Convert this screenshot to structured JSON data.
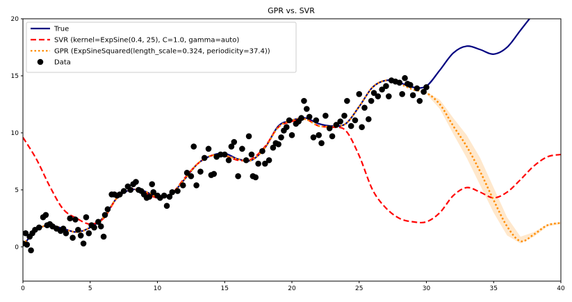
{
  "chart_data": {
    "type": "line",
    "title": "GPR vs. SVR",
    "xlabel": "",
    "ylabel": "",
    "xlim": [
      0,
      40
    ],
    "ylim": [
      -3,
      20
    ],
    "x_ticks": [
      0,
      5,
      10,
      15,
      20,
      25,
      30,
      35,
      40
    ],
    "y_ticks": [
      0,
      5,
      10,
      15,
      20
    ],
    "grid": false,
    "legend_position": "top-left",
    "series": [
      {
        "name": "True",
        "style": "solid",
        "color": "#000080",
        "x": [
          0,
          1,
          2,
          3,
          4,
          5,
          6,
          7,
          8,
          9,
          10,
          11,
          12,
          13,
          14,
          15,
          16,
          17,
          18,
          19,
          20,
          21,
          22,
          23,
          24,
          25,
          26,
          27,
          28,
          29,
          30,
          31,
          32,
          33,
          34,
          35,
          36,
          37,
          38,
          39,
          40
        ],
        "y": [
          0.1,
          1.5,
          1.9,
          1.6,
          1.3,
          1.7,
          2.6,
          4.3,
          5.0,
          4.9,
          4.4,
          4.6,
          5.9,
          7.3,
          8.0,
          8.2,
          7.7,
          7.6,
          8.7,
          10.6,
          11.1,
          11.3,
          10.8,
          10.6,
          10.8,
          12.3,
          14.0,
          14.6,
          14.4,
          14.0,
          14.1,
          15.5,
          17.0,
          17.6,
          17.3,
          16.9,
          17.5,
          19.0,
          20.5,
          22.0,
          23.5
        ]
      },
      {
        "name": "SVR (kernel=ExpSine(0.4, 25), C=1.0, gamma=auto)",
        "style": "dashed",
        "color": "#ff0000",
        "x": [
          0,
          1,
          2,
          3,
          4,
          5,
          6,
          7,
          8,
          9,
          10,
          11,
          12,
          13,
          14,
          15,
          16,
          17,
          18,
          19,
          20,
          21,
          22,
          23,
          24,
          25,
          26,
          27,
          28,
          29,
          30,
          31,
          32,
          33,
          34,
          35,
          36,
          37,
          38,
          39,
          40
        ],
        "y": [
          9.6,
          7.7,
          5.3,
          3.3,
          2.5,
          2.0,
          2.5,
          4.3,
          5.1,
          4.8,
          4.3,
          4.6,
          6.0,
          7.3,
          8.0,
          8.0,
          7.6,
          7.7,
          8.8,
          10.5,
          11.0,
          11.2,
          10.6,
          10.5,
          10.2,
          8.0,
          5.0,
          3.4,
          2.5,
          2.2,
          2.2,
          3.0,
          4.5,
          5.2,
          4.8,
          4.3,
          4.8,
          5.9,
          7.1,
          7.9,
          8.1
        ]
      },
      {
        "name": "GPR (ExpSineSquared(length_scale=0.324, periodicity=37.4))",
        "style": "dotted",
        "color": "#ff8c00",
        "x": [
          0,
          1,
          2,
          3,
          4,
          5,
          6,
          7,
          8,
          9,
          10,
          11,
          12,
          13,
          14,
          15,
          16,
          17,
          18,
          19,
          20,
          21,
          22,
          23,
          24,
          25,
          26,
          27,
          28,
          29,
          30,
          31,
          32,
          33,
          34,
          35,
          36,
          37,
          38,
          39,
          40
        ],
        "y": [
          0.2,
          1.5,
          1.9,
          1.6,
          1.3,
          1.7,
          2.6,
          4.3,
          5.0,
          4.9,
          4.4,
          4.6,
          5.9,
          7.3,
          8.0,
          8.0,
          7.7,
          7.6,
          8.7,
          10.5,
          11.1,
          11.2,
          10.6,
          10.6,
          10.8,
          12.3,
          14.0,
          14.6,
          14.3,
          13.8,
          13.5,
          12.5,
          10.6,
          8.8,
          6.6,
          4.1,
          1.8,
          0.5,
          1.1,
          1.9,
          2.1
        ],
        "band_upper": [
          0.2,
          1.5,
          1.9,
          1.6,
          1.3,
          1.7,
          2.6,
          4.3,
          5.0,
          4.9,
          4.4,
          4.6,
          5.9,
          7.3,
          8.0,
          8.0,
          7.7,
          7.6,
          8.7,
          10.5,
          11.1,
          11.2,
          10.6,
          10.6,
          10.8,
          12.3,
          14.0,
          14.6,
          14.3,
          13.8,
          13.6,
          12.9,
          11.3,
          9.8,
          7.8,
          5.2,
          2.6,
          0.9,
          1.3,
          2.0,
          2.2
        ],
        "band_lower": [
          0.2,
          1.5,
          1.9,
          1.6,
          1.3,
          1.7,
          2.6,
          4.3,
          5.0,
          4.9,
          4.4,
          4.6,
          5.9,
          7.3,
          8.0,
          8.0,
          7.7,
          7.6,
          8.7,
          10.5,
          11.1,
          11.2,
          10.6,
          10.6,
          10.8,
          12.3,
          14.0,
          14.6,
          14.3,
          13.8,
          13.4,
          12.1,
          9.9,
          7.8,
          5.4,
          3.0,
          1.0,
          0.3,
          0.9,
          1.8,
          2.0
        ]
      },
      {
        "name": "Data",
        "style": "scatter",
        "color": "#000000",
        "x": [
          0.0,
          0.2,
          0.3,
          0.5,
          0.6,
          0.7,
          0.9,
          1.2,
          1.5,
          1.7,
          1.8,
          2.0,
          2.2,
          2.5,
          2.8,
          3.0,
          3.2,
          3.5,
          3.7,
          3.9,
          4.1,
          4.3,
          4.5,
          4.7,
          4.9,
          5.1,
          5.3,
          5.6,
          5.8,
          6.0,
          6.1,
          6.3,
          6.6,
          6.8,
          7.0,
          7.2,
          7.5,
          7.8,
          8.0,
          8.2,
          8.4,
          8.6,
          8.8,
          9.0,
          9.2,
          9.4,
          9.6,
          9.7,
          10.0,
          10.2,
          10.5,
          10.7,
          10.9,
          11.1,
          11.5,
          11.9,
          12.2,
          12.5,
          12.7,
          12.9,
          13.2,
          13.5,
          13.8,
          14.0,
          14.2,
          14.4,
          14.7,
          15.0,
          15.3,
          15.5,
          15.7,
          16.0,
          16.3,
          16.6,
          16.8,
          17.0,
          17.1,
          17.3,
          17.5,
          17.8,
          18.0,
          18.3,
          18.6,
          18.8,
          19.0,
          19.2,
          19.4,
          19.6,
          19.8,
          20.0,
          20.3,
          20.5,
          20.7,
          20.9,
          21.1,
          21.3,
          21.6,
          21.8,
          22.0,
          22.2,
          22.5,
          22.8,
          23.0,
          23.3,
          23.6,
          23.9,
          24.1,
          24.4,
          24.7,
          25.0,
          25.2,
          25.4,
          25.7,
          25.9,
          26.1,
          26.4,
          26.7,
          27.0,
          27.2,
          27.4,
          27.7,
          28.0,
          28.2,
          28.4,
          28.6,
          28.8,
          29.0,
          29.3,
          29.5,
          29.8,
          30.0
        ],
        "y": [
          0.3,
          1.2,
          0.2,
          0.9,
          -0.3,
          1.2,
          1.5,
          1.7,
          2.6,
          2.8,
          1.9,
          2.0,
          1.8,
          1.6,
          1.4,
          1.6,
          1.2,
          2.5,
          0.8,
          2.4,
          1.5,
          1.0,
          0.3,
          2.6,
          1.2,
          1.9,
          1.7,
          2.2,
          1.8,
          0.9,
          2.8,
          3.3,
          4.6,
          4.6,
          4.5,
          4.6,
          4.9,
          5.3,
          5.0,
          5.5,
          5.7,
          5.0,
          4.9,
          4.6,
          4.3,
          4.4,
          5.5,
          4.8,
          4.5,
          4.3,
          4.5,
          3.6,
          4.4,
          4.8,
          4.9,
          5.4,
          6.5,
          6.2,
          8.8,
          5.4,
          6.6,
          7.8,
          8.6,
          6.3,
          6.4,
          7.9,
          8.1,
          8.1,
          7.6,
          8.8,
          9.2,
          6.2,
          8.6,
          7.6,
          9.7,
          8.1,
          6.2,
          6.1,
          7.3,
          8.4,
          7.3,
          7.6,
          8.7,
          9.1,
          9.0,
          9.6,
          10.2,
          10.5,
          11.1,
          9.8,
          10.8,
          11.0,
          11.3,
          12.8,
          12.1,
          11.4,
          9.6,
          11.1,
          9.8,
          9.1,
          11.5,
          10.4,
          9.7,
          10.7,
          11.0,
          11.5,
          12.8,
          10.6,
          11.1,
          13.4,
          10.5,
          12.2,
          11.2,
          12.8,
          13.5,
          13.2,
          13.8,
          14.1,
          13.2,
          14.6,
          14.5,
          14.4,
          13.4,
          14.8,
          14.3,
          14.2,
          13.3,
          13.9,
          12.8,
          13.6,
          14.0
        ]
      }
    ]
  }
}
